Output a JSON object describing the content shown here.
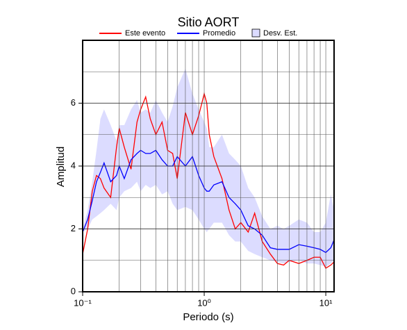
{
  "chart_data": {
    "type": "line",
    "title": "Sitio AORT",
    "x_label": "Periodo (s)",
    "y_label": "Amplitud",
    "xscale": "log",
    "grid": true,
    "xlim": [
      0.1,
      11.7
    ],
    "ylim": [
      0,
      8
    ],
    "xticks": [
      {
        "value": 0.1,
        "label": "10⁻¹"
      },
      {
        "value": 1,
        "label": "10⁰"
      },
      {
        "value": 10,
        "label": "10¹"
      }
    ],
    "yticks": [
      0,
      2,
      4,
      6
    ],
    "x": [
      0.1,
      0.11,
      0.12,
      0.13,
      0.14,
      0.15,
      0.17,
      0.19,
      0.2,
      0.22,
      0.25,
      0.28,
      0.3,
      0.33,
      0.36,
      0.4,
      0.45,
      0.5,
      0.55,
      0.6,
      0.7,
      0.8,
      0.9,
      1.0,
      1.05,
      1.1,
      1.2,
      1.4,
      1.6,
      1.8,
      2.0,
      2.3,
      2.6,
      3.0,
      3.5,
      4,
      4.5,
      5,
      6,
      7,
      8,
      9,
      10,
      11,
      11.7
    ],
    "series": [
      {
        "name": "Este evento",
        "color": "#ff0000",
        "values": [
          1.2,
          2.0,
          3.2,
          3.7,
          3.6,
          3.3,
          3.0,
          4.6,
          5.2,
          4.6,
          3.9,
          5.4,
          5.8,
          6.2,
          5.5,
          5.0,
          5.4,
          4.5,
          4.4,
          3.6,
          5.7,
          5.0,
          5.6,
          6.3,
          6.0,
          5.0,
          4.3,
          3.6,
          2.6,
          2.0,
          2.2,
          1.9,
          2.5,
          1.6,
          1.2,
          0.9,
          0.85,
          1.0,
          0.9,
          1.0,
          1.1,
          1.1,
          0.75,
          0.85,
          0.95
        ]
      },
      {
        "name": "Promedio",
        "color": "#0000ff",
        "values": [
          1.9,
          2.3,
          2.9,
          3.5,
          3.8,
          4.1,
          3.5,
          3.7,
          4.0,
          3.6,
          4.2,
          4.4,
          4.5,
          4.4,
          4.4,
          4.5,
          4.2,
          4.0,
          4.0,
          4.3,
          4.0,
          4.3,
          3.7,
          3.3,
          3.2,
          3.2,
          3.4,
          3.5,
          3.0,
          2.8,
          2.6,
          2.1,
          2.0,
          1.8,
          1.4,
          1.35,
          1.35,
          1.35,
          1.5,
          1.45,
          1.4,
          1.35,
          1.25,
          1.4,
          1.65
        ]
      },
      {
        "name": "Desv. Est.",
        "color": "#dcdcff",
        "low": [
          1.9,
          2.0,
          2.3,
          2.4,
          2.5,
          2.6,
          2.8,
          2.6,
          3.0,
          3.2,
          3.3,
          3.5,
          3.2,
          3.4,
          3.3,
          3.4,
          3.1,
          3.2,
          2.8,
          2.6,
          2.7,
          2.6,
          2.3,
          2.0,
          1.9,
          2.0,
          2.2,
          2.2,
          1.8,
          1.6,
          1.6,
          1.3,
          1.2,
          1.1,
          1.0,
          0.95,
          0.9,
          0.95,
          1.0,
          0.9,
          0.9,
          0.85,
          0.8,
          0.9,
          1.0
        ],
        "high": [
          2.0,
          2.6,
          3.5,
          4.5,
          5.5,
          5.8,
          5.3,
          4.8,
          5.3,
          5.3,
          5.8,
          6.1,
          5.7,
          5.8,
          5.7,
          6.1,
          5.7,
          5.4,
          5.9,
          6.5,
          7.1,
          6.3,
          5.8,
          5.4,
          5.2,
          4.6,
          4.6,
          5.0,
          4.4,
          4.2,
          4.0,
          3.3,
          3.0,
          2.4,
          2.0,
          2.1,
          2.0,
          2.1,
          2.3,
          2.2,
          1.9,
          1.9,
          2.2,
          3.1,
          2.6
        ]
      }
    ]
  }
}
